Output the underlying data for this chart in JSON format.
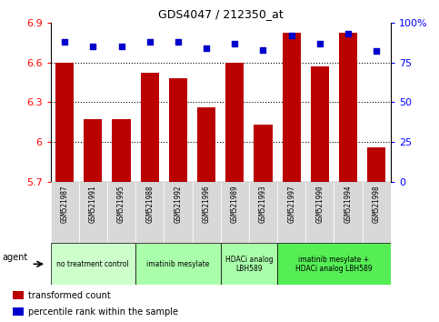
{
  "title": "GDS4047 / 212350_at",
  "samples": [
    "GSM521987",
    "GSM521991",
    "GSM521995",
    "GSM521988",
    "GSM521992",
    "GSM521996",
    "GSM521989",
    "GSM521993",
    "GSM521997",
    "GSM521990",
    "GSM521994",
    "GSM521998"
  ],
  "bar_values": [
    6.6,
    6.17,
    6.17,
    6.52,
    6.48,
    6.26,
    6.6,
    6.13,
    6.82,
    6.57,
    6.82,
    5.96
  ],
  "percentile_values": [
    88,
    85,
    85,
    88,
    88,
    84,
    87,
    83,
    92,
    87,
    93,
    82
  ],
  "ylim_left": [
    5.7,
    6.9
  ],
  "ylim_right": [
    0,
    100
  ],
  "yticks_left": [
    5.7,
    6.0,
    6.3,
    6.6,
    6.9
  ],
  "ytick_labels_left": [
    "5.7",
    "6",
    "6.3",
    "6.6",
    "6.9"
  ],
  "yticks_right": [
    0,
    25,
    50,
    75,
    100
  ],
  "ytick_labels_right": [
    "0",
    "25",
    "50",
    "75",
    "100%"
  ],
  "bar_color": "#bb0000",
  "dot_color": "#0000cc",
  "gridlines": [
    6.0,
    6.3,
    6.6
  ],
  "groups": [
    {
      "label": "no treatment control",
      "start": 0,
      "end": 3,
      "color": "#ccffcc"
    },
    {
      "label": "imatinib mesylate",
      "start": 3,
      "end": 6,
      "color": "#aaffaa"
    },
    {
      "label": "HDACi analog\nLBH589",
      "start": 6,
      "end": 8,
      "color": "#aaffaa"
    },
    {
      "label": "imatinib mesylate +\nHDACi analog LBH589",
      "start": 8,
      "end": 12,
      "color": "#55ee55"
    }
  ],
  "agent_label": "agent",
  "legend_bar_label": "transformed count",
  "legend_dot_label": "percentile rank within the sample",
  "sample_box_bg": "#cccccc",
  "plot_bg": "#ffffff",
  "fig_bg": "#ffffff"
}
